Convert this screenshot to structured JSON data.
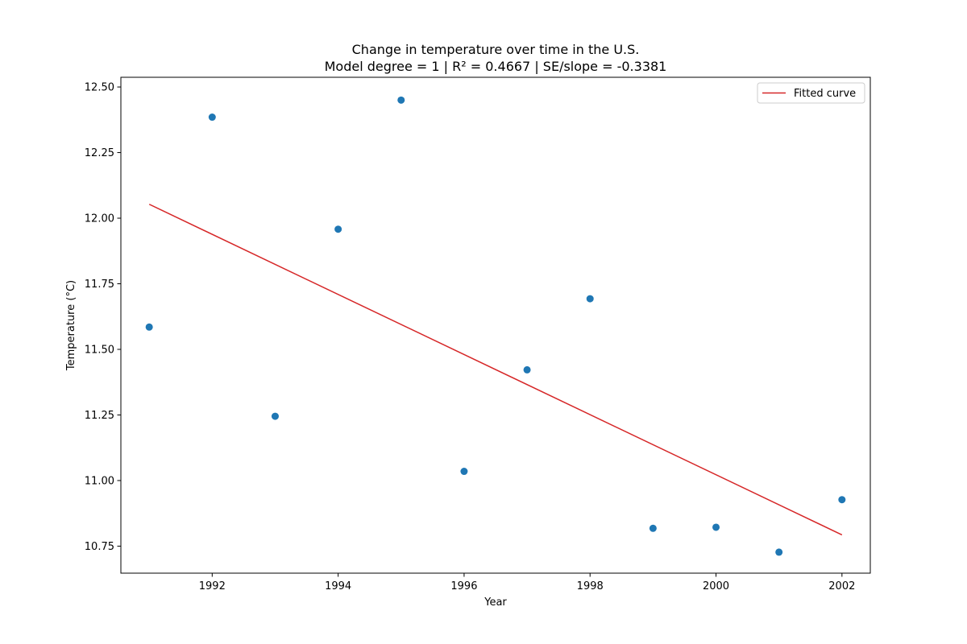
{
  "chart_data": {
    "type": "scatter",
    "title": "Change in temperature over time in the U.S.",
    "subtitle": "Model degree = 1 | R² = 0.4667 | SE/slope = -0.3381",
    "xlabel": "Year",
    "ylabel": "Temperature (°C)",
    "xlim": [
      1990.55,
      2002.45
    ],
    "ylim": [
      10.647,
      12.537
    ],
    "xticks": [
      1992,
      1994,
      1996,
      1998,
      2000,
      2002
    ],
    "yticks": [
      10.75,
      11.0,
      11.25,
      11.5,
      11.75,
      12.0,
      12.25,
      12.5
    ],
    "ytick_labels": [
      "10.75",
      "11.00",
      "11.25",
      "11.50",
      "11.75",
      "12.00",
      "12.25",
      "12.50"
    ],
    "grid": false,
    "legend_position": "top-right",
    "points": {
      "x": [
        1991,
        1992,
        1993,
        1994,
        1995,
        1996,
        1997,
        1998,
        1999,
        2000,
        2001,
        2002
      ],
      "y": [
        11.585,
        12.385,
        11.245,
        11.958,
        12.45,
        11.035,
        11.422,
        11.693,
        10.818,
        10.822,
        10.727,
        10.927
      ],
      "color": "#1f77b4"
    },
    "series": [
      {
        "name": "Fitted curve",
        "type": "line",
        "x": [
          1991,
          2002
        ],
        "y": [
          12.053,
          10.793
        ],
        "color": "#d62728"
      }
    ]
  }
}
